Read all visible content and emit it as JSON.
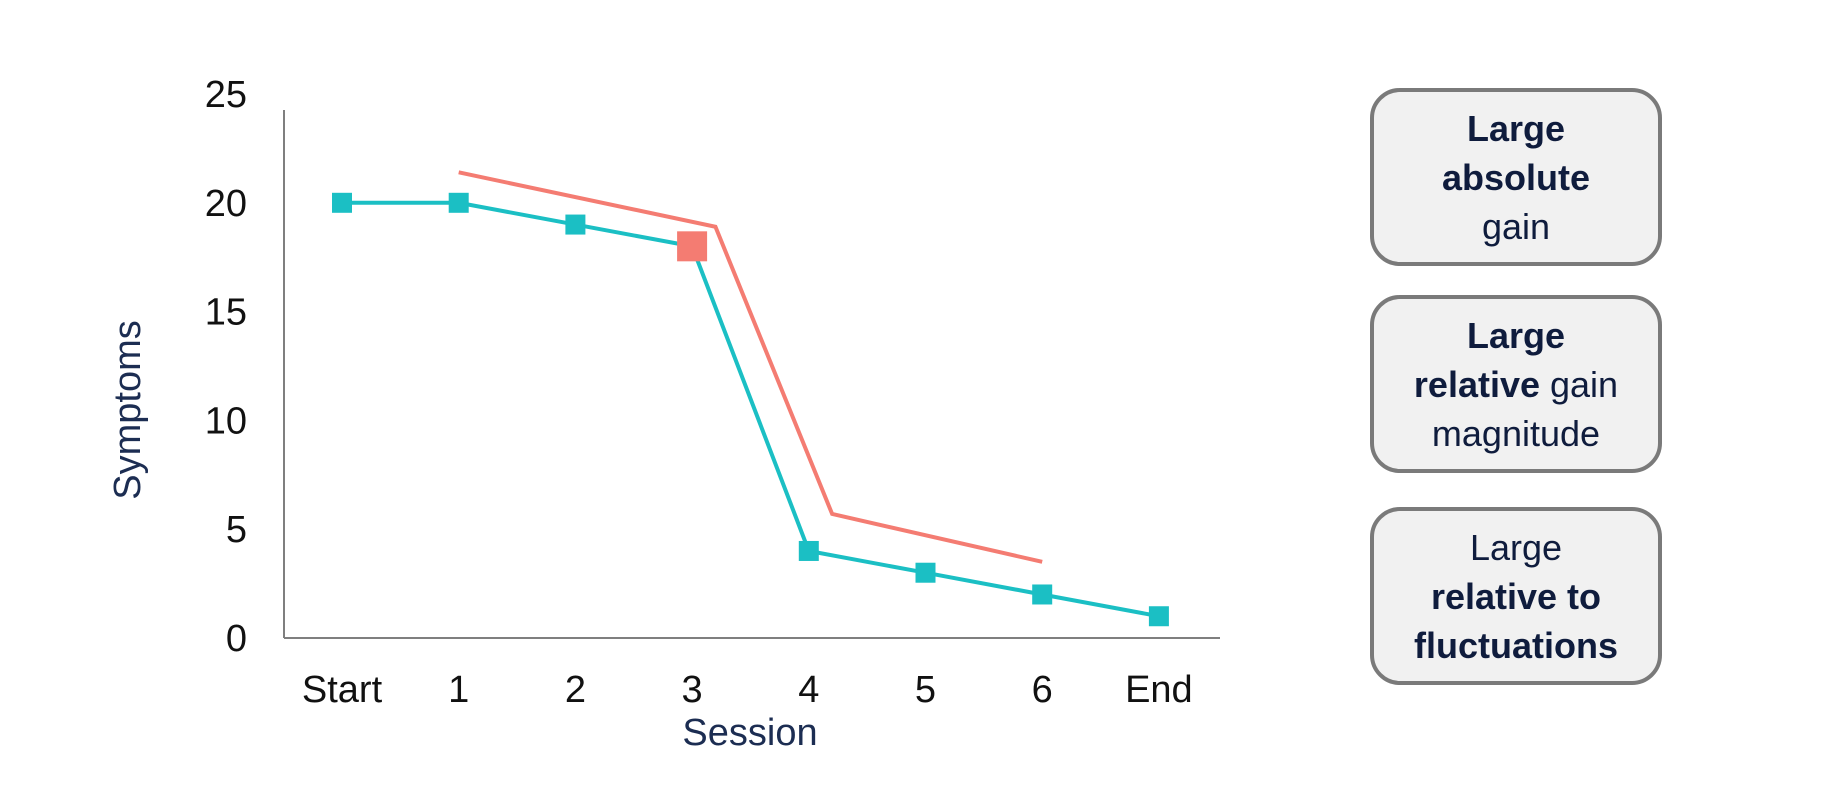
{
  "chart_data": {
    "type": "line",
    "xlabel": "Session",
    "ylabel": "Symptoms",
    "categories": [
      "Start",
      "1",
      "2",
      "3",
      "4",
      "5",
      "6",
      "End"
    ],
    "ylim": [
      0,
      25
    ],
    "yticks": [
      0,
      5,
      10,
      15,
      20,
      25
    ],
    "grid": false,
    "legend": "none",
    "series": [
      {
        "values": [
          20,
          20,
          19,
          18,
          4,
          3,
          2,
          1
        ],
        "color": "#1bbfc4",
        "marker": "square",
        "highlight_point": {
          "category": "3",
          "value": 18,
          "color": "#f47c72"
        }
      }
    ],
    "annotation_line": {
      "color": "#f47c72",
      "points": [
        {
          "x": 1,
          "y": 21.4
        },
        {
          "x": 3.2,
          "y": 18.9
        },
        {
          "x": 4.2,
          "y": 5.7
        },
        {
          "x": 6,
          "y": 3.5
        }
      ]
    }
  },
  "callouts": [
    {
      "line1": "Large",
      "line2": "absolute",
      "line3": "gain"
    },
    {
      "line1": "Large",
      "line2_bold": "relative",
      "line2_rest": " gain",
      "line3": "magnitude"
    },
    {
      "line1": "Large",
      "line2": "relative to",
      "line3": "fluctuations"
    }
  ]
}
